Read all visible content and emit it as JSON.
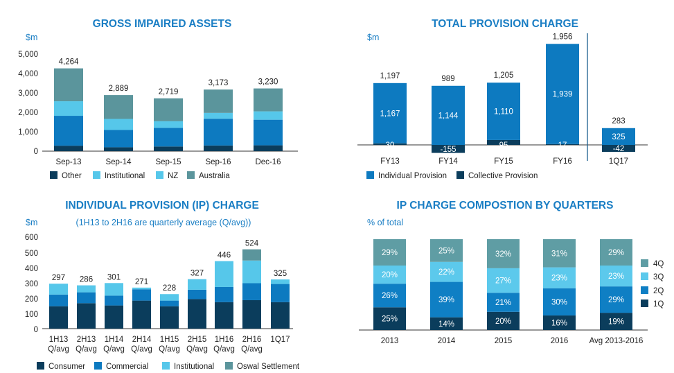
{
  "colors": {
    "title": "#1a7ec4",
    "navy": "#0b3d5c",
    "blue": "#0d7ac0",
    "light": "#56c7ea",
    "teal": "#5b959c",
    "q4": "#5f9da4",
    "q3": "#5cc9ec",
    "q2": "#0f7fc4",
    "q1": "#0b3d5c"
  },
  "chart_data": [
    {
      "type": "bar",
      "stacked": true,
      "title": "GROSS IMPAIRED ASSETS",
      "ylabel": "$m",
      "ylim": [
        0,
        5000
      ],
      "yticks": [
        "0",
        "1,000",
        "2,000",
        "3,000",
        "4,000",
        "5,000"
      ],
      "categories": [
        "Sep-13",
        "Sep-14",
        "Sep-15",
        "Sep-16",
        "Dec-16"
      ],
      "totals": [
        "4,264",
        "2,889",
        "2,719",
        "3,173",
        "3,230"
      ],
      "series": [
        {
          "name": "Other",
          "values": [
            280,
            200,
            240,
            290,
            300
          ]
        },
        {
          "name": "Institutional",
          "values": [
            1540,
            890,
            960,
            1380,
            1320
          ]
        },
        {
          "name": "NZ",
          "values": [
            750,
            570,
            340,
            300,
            430
          ]
        },
        {
          "name": "Australia",
          "values": [
            1694,
            1229,
            1179,
            1203,
            1180
          ]
        }
      ]
    },
    {
      "type": "bar",
      "title": "TOTAL PROVISION CHARGE",
      "ylabel": "$m",
      "categories": [
        "FY13",
        "FY14",
        "FY15",
        "FY16",
        "1Q17"
      ],
      "totals": [
        "1,197",
        "989",
        "1,205",
        "1,956",
        "283"
      ],
      "series": [
        {
          "name": "Individual Provision",
          "values": [
            1167,
            1144,
            1110,
            1939,
            325
          ],
          "labels": [
            "1,167",
            "1,144",
            "1,110",
            "1,939",
            "325"
          ]
        },
        {
          "name": "Collective Provision",
          "values": [
            30,
            -155,
            95,
            17,
            -42
          ],
          "labels": [
            "30",
            "-155",
            "95",
            "17",
            "-42"
          ]
        }
      ]
    },
    {
      "type": "bar",
      "stacked": true,
      "title": "INDIVIDUAL PROVISION (IP) CHARGE",
      "subtitle": "(1H13 to 2H16 are quarterly average (Q/avg))",
      "ylabel": "$m",
      "ylim": [
        0,
        600
      ],
      "yticks": [
        "0",
        "100",
        "200",
        "300",
        "400",
        "500",
        "600"
      ],
      "categories": [
        [
          "1H13",
          "Q/avg"
        ],
        [
          "2H13",
          "Q/avg"
        ],
        [
          "1H14",
          "Q/avg"
        ],
        [
          "2H14",
          "Q/avg"
        ],
        [
          "1H15",
          "Q/avg"
        ],
        [
          "2H15",
          "Q/avg"
        ],
        [
          "1H16",
          "Q/avg"
        ],
        [
          "2H16",
          "Q/avg"
        ],
        [
          "1Q17",
          ""
        ]
      ],
      "totals": [
        "297",
        "286",
        "301",
        "271",
        "228",
        "327",
        "446",
        "524",
        "325"
      ],
      "series": [
        {
          "name": "Consumer",
          "values": [
            148,
            168,
            153,
            185,
            148,
            195,
            175,
            188,
            175
          ]
        },
        {
          "name": "Commercial",
          "values": [
            77,
            72,
            65,
            75,
            37,
            62,
            100,
            112,
            120
          ]
        },
        {
          "name": "Institutional",
          "values": [
            72,
            46,
            83,
            11,
            43,
            70,
            171,
            150,
            30
          ]
        },
        {
          "name": "Oswal Settlement",
          "values": [
            0,
            0,
            0,
            0,
            0,
            0,
            0,
            74,
            0
          ]
        }
      ]
    },
    {
      "type": "bar",
      "stacked": true,
      "title": "IP CHARGE COMPOSTION BY QUARTERS",
      "ylabel": "% of total",
      "categories": [
        "2013",
        "2014",
        "2015",
        "2016",
        "Avg 2013-2016"
      ],
      "series": [
        {
          "name": "1Q",
          "values": [
            25,
            14,
            20,
            16,
            19
          ],
          "labels": [
            "25%",
            "14%",
            "20%",
            "16%",
            "19%"
          ]
        },
        {
          "name": "2Q",
          "values": [
            26,
            39,
            21,
            30,
            29
          ],
          "labels": [
            "26%",
            "39%",
            "21%",
            "30%",
            "29%"
          ]
        },
        {
          "name": "3Q",
          "values": [
            20,
            22,
            27,
            23,
            23
          ],
          "labels": [
            "20%",
            "22%",
            "27%",
            "23%",
            "23%"
          ]
        },
        {
          "name": "4Q",
          "values": [
            29,
            25,
            32,
            31,
            29
          ],
          "labels": [
            "29%",
            "25%",
            "32%",
            "31%",
            "29%"
          ]
        }
      ]
    }
  ]
}
